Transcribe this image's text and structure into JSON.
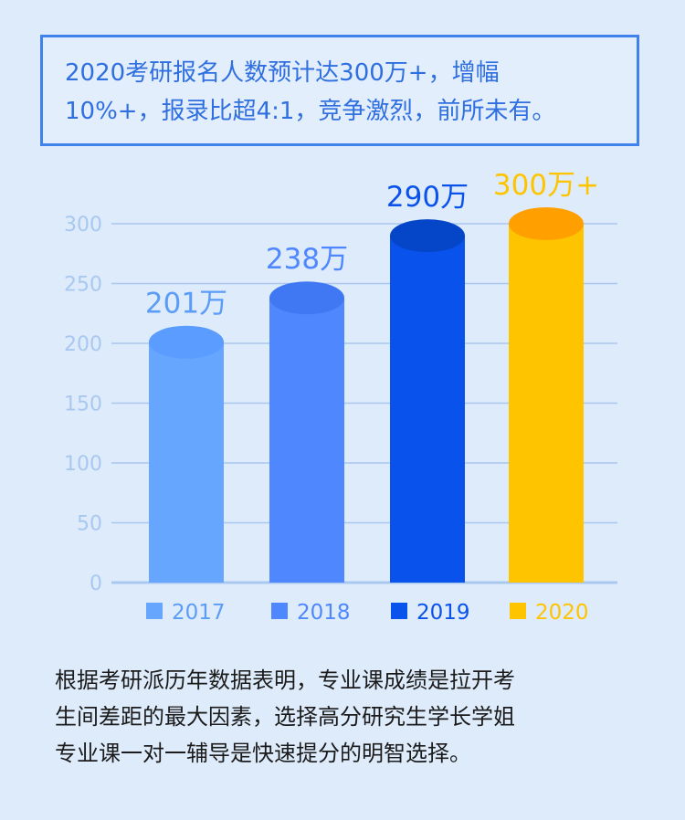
{
  "headline": {
    "lines": [
      "2020考研报名人数预计达300万+，增幅",
      "10%+，报录比超4:1，竞争激烈，前所未有。"
    ]
  },
  "caption": {
    "lines": [
      "根据考研派历年数据表明，专业课成绩是拉开考",
      "生间差距的最大因素，选择高分研究生学长学姐",
      "专业课一对一辅导是快速提分的明智选择。"
    ]
  },
  "colors": {
    "background": "#deebfb",
    "headline_text": "#2f6fe0",
    "axis_text": "#a9c8f0",
    "grid": "#a9c8f0",
    "bar_2017": "#66a6ff",
    "bar_2018": "#4f87ff",
    "bar_2019": "#0a52ec",
    "bar_2020": "#ffc400"
  },
  "chart_data": {
    "type": "bar",
    "categories": [
      "2017",
      "2018",
      "2019",
      "2020"
    ],
    "values": [
      201,
      238,
      290,
      300
    ],
    "data_labels": [
      "201万",
      "238万",
      "290万",
      "300万+"
    ],
    "ylim": [
      0,
      300
    ],
    "yticks": [
      "0",
      "50",
      "100",
      "150",
      "200",
      "250",
      "300"
    ],
    "grid": true,
    "legend_position": "bottom",
    "bar_style": "cylinder",
    "colors": [
      "#66a6ff",
      "#4f87ff",
      "#0a52ec",
      "#ffc400"
    ],
    "top_colors": [
      "#5a9cff",
      "#3f78f2",
      "#0546c9",
      "#ff9f00"
    ],
    "label_colors": [
      "#5b9df6",
      "#4f87ff",
      "#0a52ec",
      "#ffc400"
    ]
  }
}
